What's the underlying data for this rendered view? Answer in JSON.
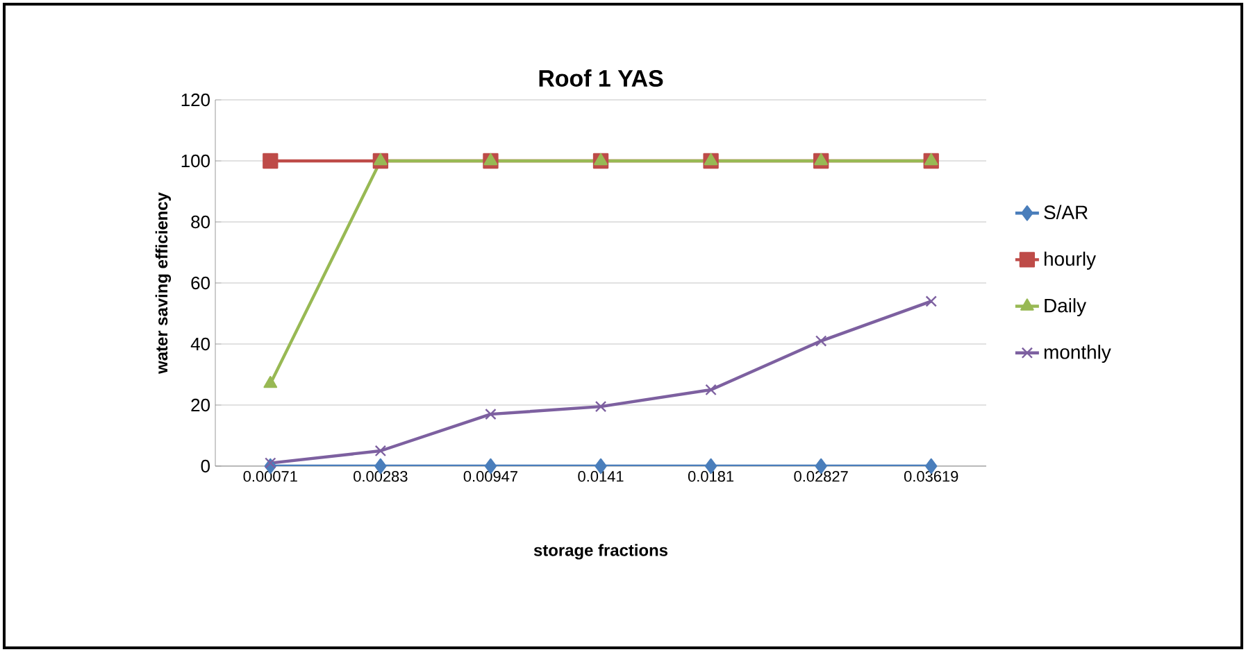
{
  "chart_data": {
    "type": "line",
    "title": "Roof 1 YAS",
    "xlabel": "storage fractions",
    "ylabel": "water saving efficiency",
    "categories": [
      "0.00071",
      "0.00283",
      "0.00947",
      "0.0141",
      "0.0181",
      "0.02827",
      "0.03619"
    ],
    "ylim": [
      0,
      120
    ],
    "yticks": [
      0,
      20,
      40,
      60,
      80,
      100,
      120
    ],
    "grid": "y",
    "legend": "right",
    "series": [
      {
        "name": "S/AR",
        "color": "#4a7ebb",
        "marker": "diamond",
        "values": [
          0,
          0,
          0,
          0,
          0,
          0,
          0
        ]
      },
      {
        "name": "hourly",
        "color": "#be4b48",
        "marker": "square",
        "values": [
          100,
          100,
          100,
          100,
          100,
          100,
          100
        ]
      },
      {
        "name": "Daily",
        "color": "#98b954",
        "marker": "triangle",
        "values": [
          27,
          100,
          100,
          100,
          100,
          100,
          100
        ]
      },
      {
        "name": "monthly",
        "color": "#7d60a0",
        "marker": "cross",
        "values": [
          1,
          5,
          17,
          19.5,
          25,
          41,
          54
        ]
      }
    ]
  }
}
